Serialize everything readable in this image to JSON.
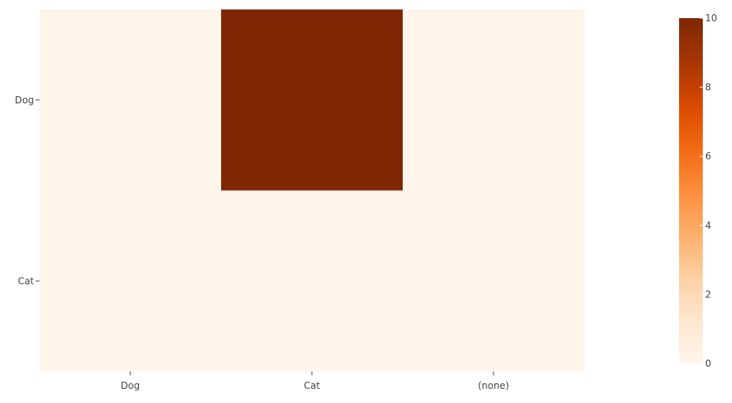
{
  "chart_data": {
    "type": "heatmap",
    "x": [
      "Dog",
      "Cat",
      "(none)"
    ],
    "y": [
      "Dog",
      "Cat"
    ],
    "z": [
      [
        0,
        10,
        0
      ],
      [
        0,
        0,
        0
      ]
    ],
    "zlim": [
      0,
      10
    ],
    "colorscale": "Oranges",
    "colorscale_stops": [
      "#fff5eb",
      "#fee6ce",
      "#fdd0a2",
      "#fdae6b",
      "#fd8d3c",
      "#f16913",
      "#d94801",
      "#a63603",
      "#7f2704"
    ],
    "colorbar_ticks": [
      0,
      2,
      4,
      6,
      8,
      10
    ],
    "colorbar_tick_labels": [
      "0",
      "2",
      "4",
      "6",
      "8",
      "10"
    ],
    "title": "",
    "xlabel": "",
    "ylabel": "",
    "grid": false,
    "legend": "right"
  }
}
